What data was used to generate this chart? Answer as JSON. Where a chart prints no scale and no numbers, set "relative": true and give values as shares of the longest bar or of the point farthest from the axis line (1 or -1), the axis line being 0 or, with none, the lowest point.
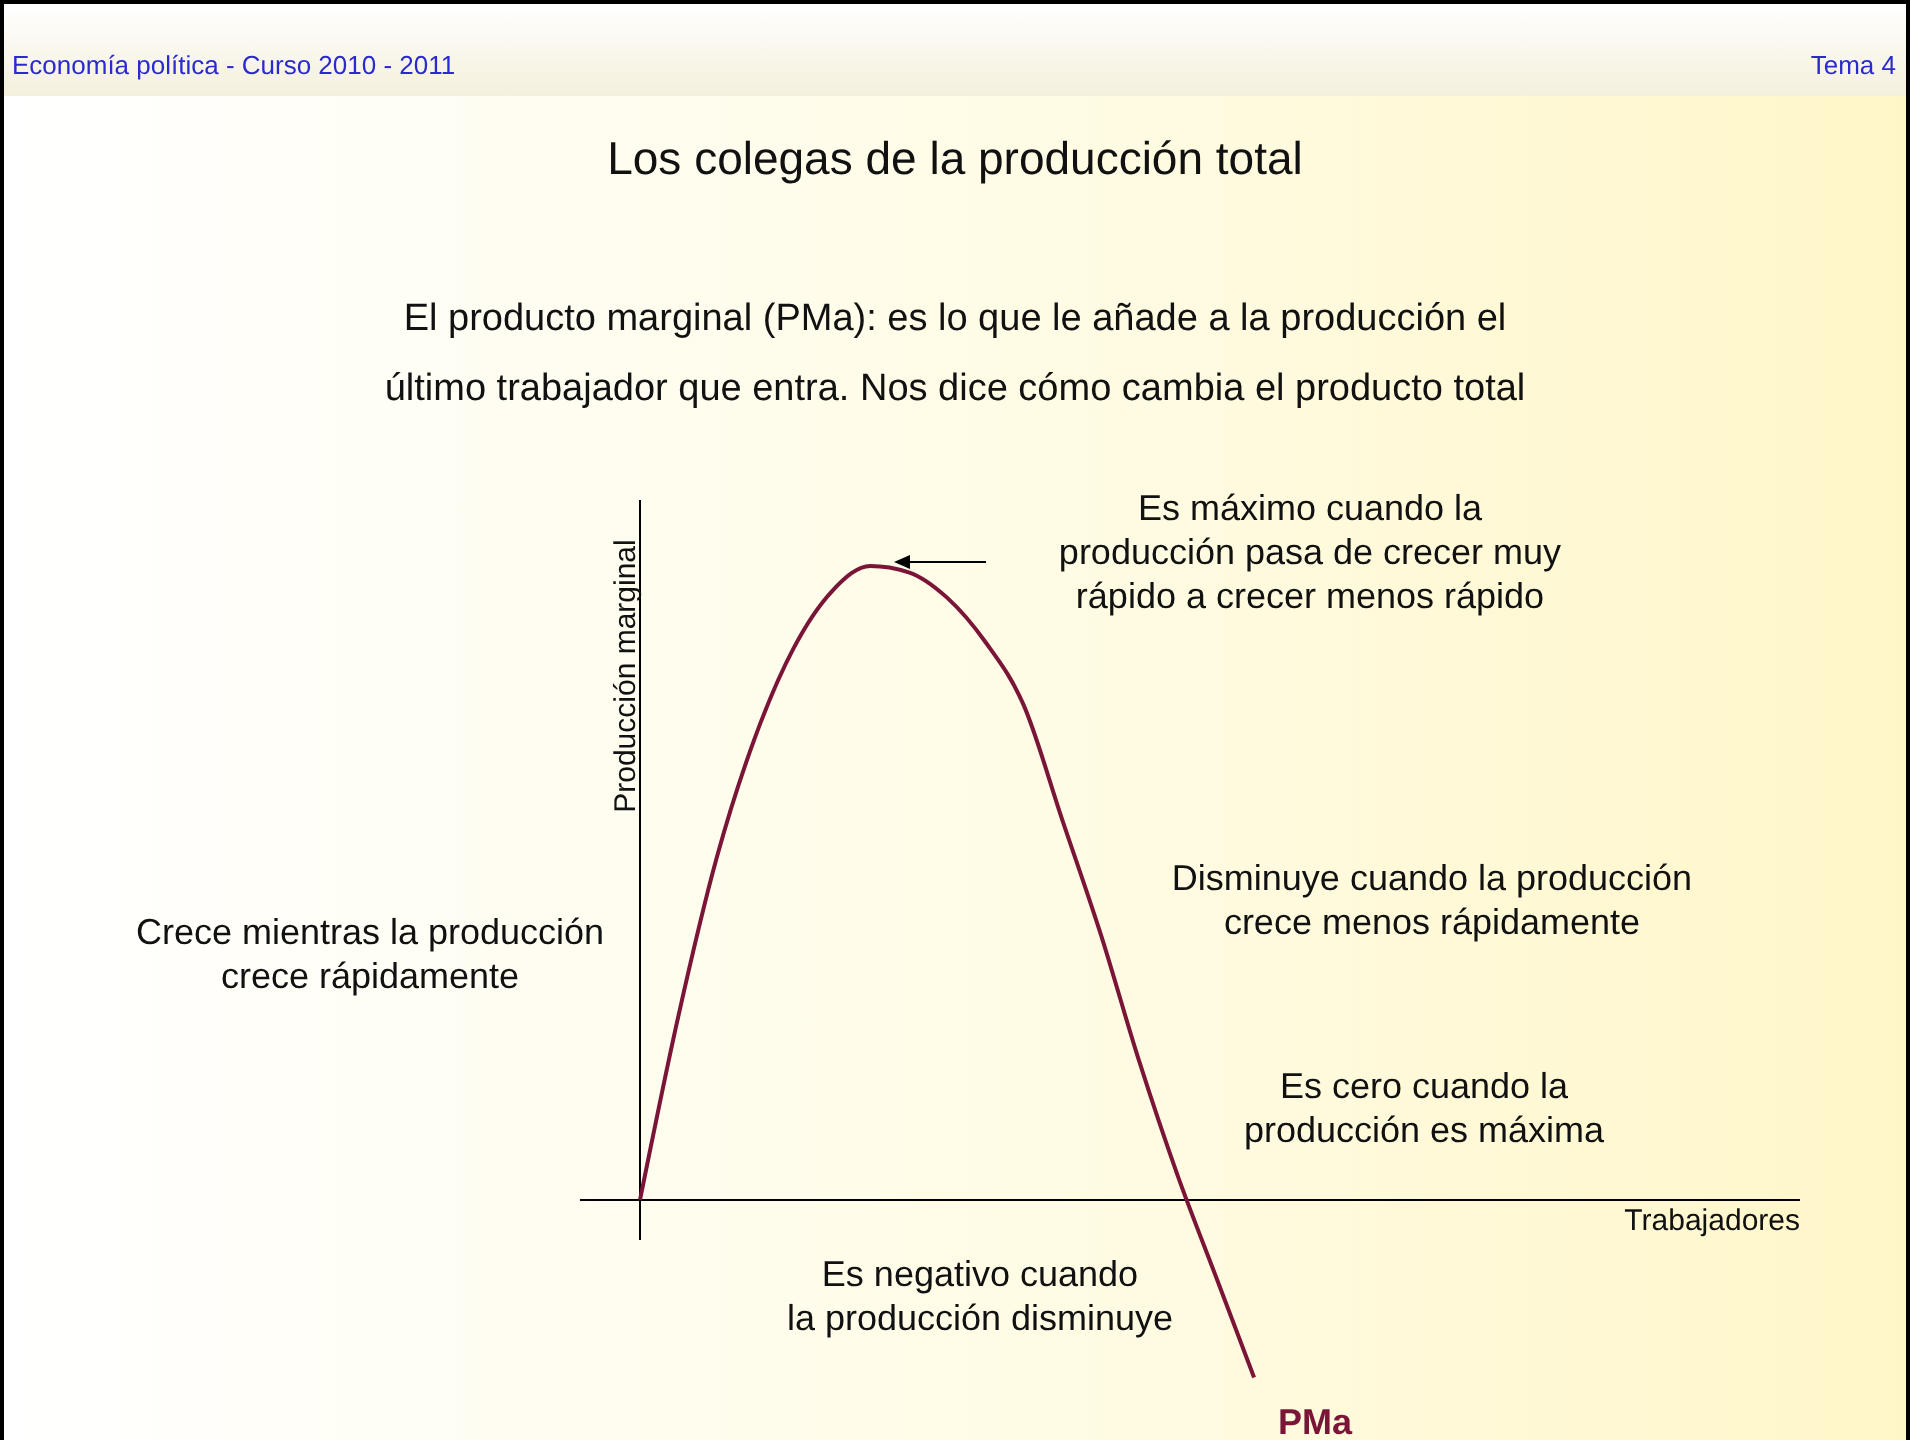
{
  "chart_data": {
    "type": "line",
    "relative": true,
    "title": "Los colegas de la producción total",
    "subtitle": "El producto marginal (PMa): es lo que le añade a la producción el\núltimo trabajador que entra. Nos dice cómo cambia el producto total",
    "ylabel": "Producción marginal",
    "categories": [
      null,
      null,
      null,
      null,
      null,
      null,
      null,
      null,
      null,
      null,
      null,
      null,
      null,
      null,
      null,
      null,
      null
    ],
    "series": [
      {
        "name": "PMa",
        "color": "#7a1538",
        "values": [
          0,
          0.29,
          0.54,
          0.73,
          0.87,
          0.96,
          1.0,
          0.99,
          0.95,
          0.88,
          0.78,
          0.6,
          0.42,
          0.22,
          0.04,
          -0.12,
          -0.28
        ]
      }
    ],
    "annotations": [
      "Es máximo cuando la\nproducción pasa de crecer muy\nrápido a crecer menos rápido",
      "Disminuye cuando la producción\ncrece menos rápidamente",
      "Crece mientras la producción\ncrece rápidamente",
      "Es cero cuando la\nproducción es máxima",
      "Es negativo cuando\nla producción disminuye",
      "Economía política - Curso 2010 - 2011",
      "Tema 4",
      "Trabajadores"
    ]
  }
}
